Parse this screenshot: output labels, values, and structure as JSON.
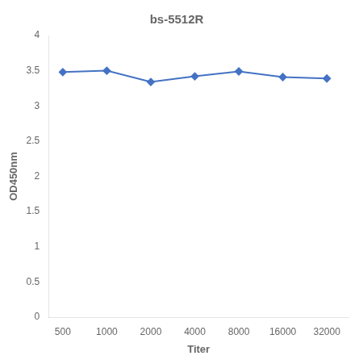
{
  "chart_data": {
    "type": "line",
    "title": "bs-5512R",
    "xlabel": "Titer",
    "ylabel": "OD450nm",
    "x": [
      500,
      1000,
      2000,
      4000,
      8000,
      16000,
      32000
    ],
    "values": [
      3.48,
      3.5,
      3.34,
      3.42,
      3.49,
      3.41,
      3.39
    ],
    "color": "#4472C4",
    "marker": "diamond",
    "log": "x",
    "xlim": [
      400,
      45000
    ],
    "xticks": [
      500,
      1000,
      2000,
      4000,
      8000,
      16000,
      32000
    ],
    "ylim": [
      0,
      4.0
    ],
    "yticks": [
      0,
      0.5,
      1.0,
      1.5,
      2.0,
      2.5,
      3.0,
      3.5,
      4.0
    ],
    "grid": false
  }
}
